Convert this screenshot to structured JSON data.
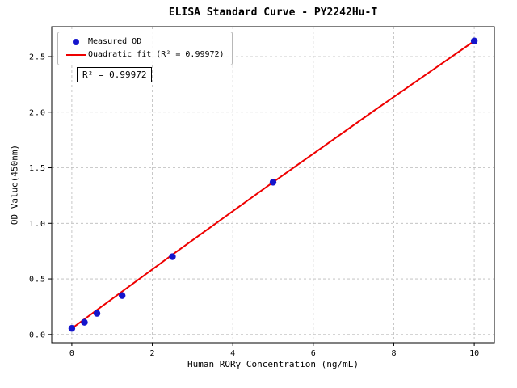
{
  "chart_data": {
    "type": "scatter",
    "title": "ELISA Standard Curve - PY2242Hu-T",
    "xlabel": "Human RORγ Concentration (ng/mL)",
    "ylabel": "OD Value(450nm)",
    "xlim": [
      -0.5,
      10.5
    ],
    "ylim": [
      -0.074,
      2.769
    ],
    "xticks": [
      0,
      2,
      4,
      6,
      8,
      10
    ],
    "xtick_labels": [
      "0",
      "2",
      "4",
      "6",
      "8",
      "10"
    ],
    "yticks": [
      0.0,
      0.5,
      1.0,
      1.5,
      2.0,
      2.5
    ],
    "ytick_labels": [
      "0.0",
      "0.5",
      "1.0",
      "1.5",
      "2.0",
      "2.5"
    ],
    "grid": true,
    "grid_style": "dashed",
    "grid_color": "#bbbbbb",
    "legend_position": "upper left",
    "annotation": "R² = 0.99972",
    "series": [
      {
        "name": "Measured OD",
        "type": "scatter",
        "color": "#1515cc",
        "x": [
          0,
          0.313,
          0.625,
          1.25,
          2.5,
          5,
          10
        ],
        "y": [
          0.055,
          0.11,
          0.19,
          0.35,
          0.7,
          1.37,
          2.64
        ]
      },
      {
        "name": "Quadratic fit (R² = 0.99972)",
        "type": "line",
        "color": "#ee0000",
        "x": [
          0,
          2.5,
          5,
          7.5,
          10
        ],
        "y": [
          0.055,
          0.718,
          1.37,
          2.011,
          2.64
        ]
      }
    ]
  }
}
